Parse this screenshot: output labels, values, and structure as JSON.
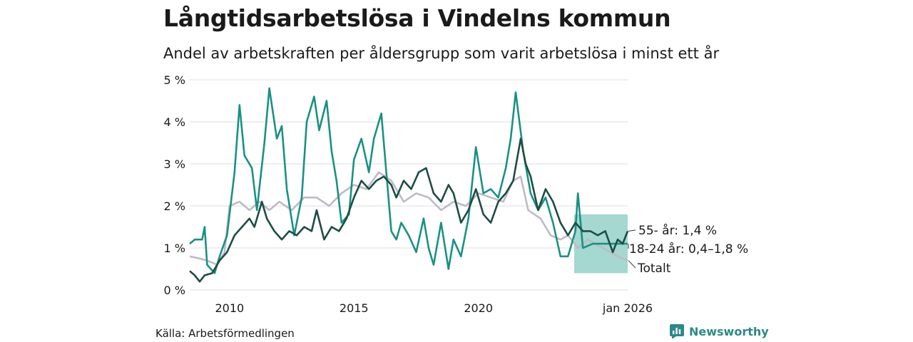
{
  "header": {
    "title": "Långtidsarbetslösa i Vindelns kommun",
    "subtitle": "Andel av arbetskraften per åldersgrupp som varit arbetslösa i minst ett år"
  },
  "footer": {
    "source": "Källa: Arbetsförmedlingen",
    "brand": "Newsworthy"
  },
  "colors": {
    "age_55_plus": "#1e4d45",
    "age_18_24": "#1a9185",
    "total": "#bfbac6",
    "band": "#9fd6cd",
    "grid": "#dddddd"
  },
  "chart_data": {
    "type": "line",
    "title": "Långtidsarbetslösa i Vindelns kommun",
    "subtitle": "Andel av arbetskraften per åldersgrupp som varit arbetslösa i minst ett år",
    "xlabel": "",
    "ylabel": "",
    "xlim": [
      2008.4,
      2026.0
    ],
    "ylim": [
      0,
      5
    ],
    "y_ticks": [
      {
        "value": 0,
        "label": "0 %"
      },
      {
        "value": 1,
        "label": "1 %"
      },
      {
        "value": 2,
        "label": "2 %"
      },
      {
        "value": 3,
        "label": "3 %"
      },
      {
        "value": 4,
        "label": "4 %"
      },
      {
        "value": 5,
        "label": "5 %"
      }
    ],
    "x_ticks": [
      {
        "value": 2010,
        "label": "2010"
      },
      {
        "value": 2015,
        "label": "2015"
      },
      {
        "value": 2020,
        "label": "2020"
      },
      {
        "value": 2026,
        "label": "jan 2026"
      }
    ],
    "grid": true,
    "series": [
      {
        "name": "Totalt",
        "key": "total",
        "points": [
          [
            2008.4,
            0.8
          ],
          [
            2008.8,
            0.75
          ],
          [
            2009.1,
            0.7
          ],
          [
            2009.5,
            0.6
          ],
          [
            2009.8,
            0.9
          ],
          [
            2010.0,
            2.0
          ],
          [
            2010.4,
            2.1
          ],
          [
            2010.8,
            1.9
          ],
          [
            2011.2,
            2.1
          ],
          [
            2011.6,
            1.9
          ],
          [
            2012.0,
            2.1
          ],
          [
            2012.5,
            1.9
          ],
          [
            2013.0,
            2.2
          ],
          [
            2013.5,
            2.2
          ],
          [
            2014.0,
            2.0
          ],
          [
            2014.5,
            2.3
          ],
          [
            2015.0,
            2.5
          ],
          [
            2015.5,
            2.4
          ],
          [
            2016.0,
            2.8
          ],
          [
            2016.5,
            2.6
          ],
          [
            2017.0,
            2.1
          ],
          [
            2017.5,
            2.3
          ],
          [
            2018.0,
            2.2
          ],
          [
            2018.5,
            1.9
          ],
          [
            2019.0,
            2.1
          ],
          [
            2019.5,
            2.0
          ],
          [
            2020.0,
            2.3
          ],
          [
            2020.5,
            2.2
          ],
          [
            2021.0,
            2.1
          ],
          [
            2021.4,
            2.6
          ],
          [
            2021.7,
            2.7
          ],
          [
            2022.0,
            1.9
          ],
          [
            2022.5,
            1.7
          ],
          [
            2022.9,
            1.3
          ],
          [
            2023.3,
            1.2
          ],
          [
            2023.6,
            1.3
          ],
          [
            2024.0,
            1.0
          ],
          [
            2024.4,
            1.2
          ],
          [
            2024.7,
            1.1
          ],
          [
            2025.0,
            1.0
          ],
          [
            2025.3,
            0.9
          ],
          [
            2025.6,
            0.8
          ],
          [
            2025.8,
            0.75
          ],
          [
            2026.0,
            0.7
          ]
        ]
      },
      {
        "name": "18-24 år",
        "key": "age_18_24",
        "points": [
          [
            2008.4,
            1.1
          ],
          [
            2008.6,
            1.2
          ],
          [
            2008.9,
            1.2
          ],
          [
            2009.0,
            1.5
          ],
          [
            2009.1,
            0.6
          ],
          [
            2009.4,
            0.4
          ],
          [
            2009.6,
            0.8
          ],
          [
            2009.9,
            1.3
          ],
          [
            2010.2,
            2.8
          ],
          [
            2010.4,
            4.4
          ],
          [
            2010.6,
            3.2
          ],
          [
            2010.9,
            2.9
          ],
          [
            2011.1,
            1.9
          ],
          [
            2011.4,
            3.5
          ],
          [
            2011.6,
            4.8
          ],
          [
            2011.9,
            3.6
          ],
          [
            2012.1,
            3.9
          ],
          [
            2012.3,
            2.4
          ],
          [
            2012.6,
            1.3
          ],
          [
            2012.9,
            2.2
          ],
          [
            2013.1,
            4.0
          ],
          [
            2013.4,
            4.6
          ],
          [
            2013.6,
            3.8
          ],
          [
            2013.9,
            4.5
          ],
          [
            2014.1,
            3.3
          ],
          [
            2014.3,
            2.6
          ],
          [
            2014.5,
            1.6
          ],
          [
            2014.8,
            1.8
          ],
          [
            2015.0,
            3.1
          ],
          [
            2015.3,
            3.6
          ],
          [
            2015.6,
            2.8
          ],
          [
            2015.8,
            3.6
          ],
          [
            2016.1,
            4.2
          ],
          [
            2016.3,
            2.8
          ],
          [
            2016.5,
            1.4
          ],
          [
            2016.7,
            1.2
          ],
          [
            2016.9,
            1.6
          ],
          [
            2017.2,
            1.3
          ],
          [
            2017.5,
            0.9
          ],
          [
            2017.8,
            1.7
          ],
          [
            2018.0,
            1.0
          ],
          [
            2018.2,
            0.6
          ],
          [
            2018.5,
            1.6
          ],
          [
            2018.8,
            0.5
          ],
          [
            2019.0,
            1.2
          ],
          [
            2019.3,
            0.8
          ],
          [
            2019.6,
            1.7
          ],
          [
            2019.9,
            3.4
          ],
          [
            2020.2,
            2.3
          ],
          [
            2020.5,
            2.4
          ],
          [
            2020.8,
            2.2
          ],
          [
            2021.1,
            2.9
          ],
          [
            2021.3,
            3.6
          ],
          [
            2021.5,
            4.7
          ],
          [
            2021.8,
            3.3
          ],
          [
            2022.1,
            2.3
          ],
          [
            2022.4,
            1.9
          ],
          [
            2022.7,
            2.2
          ],
          [
            2023.0,
            1.6
          ],
          [
            2023.3,
            0.8
          ],
          [
            2023.6,
            0.8
          ],
          [
            2023.9,
            1.4
          ],
          [
            2024.0,
            2.3
          ],
          [
            2024.2,
            1.0
          ],
          [
            2024.6,
            1.1
          ],
          [
            2025.0,
            1.1
          ],
          [
            2025.4,
            1.1
          ],
          [
            2025.7,
            1.1
          ],
          [
            2026.0,
            1.1
          ]
        ]
      },
      {
        "name": "55- år",
        "key": "age_55_plus",
        "points": [
          [
            2008.4,
            0.45
          ],
          [
            2008.6,
            0.35
          ],
          [
            2008.8,
            0.2
          ],
          [
            2009.0,
            0.35
          ],
          [
            2009.3,
            0.4
          ],
          [
            2009.6,
            0.7
          ],
          [
            2009.9,
            0.9
          ],
          [
            2010.2,
            1.3
          ],
          [
            2010.5,
            1.5
          ],
          [
            2010.8,
            1.7
          ],
          [
            2011.0,
            1.5
          ],
          [
            2011.3,
            2.1
          ],
          [
            2011.5,
            1.7
          ],
          [
            2011.8,
            1.4
          ],
          [
            2012.1,
            1.2
          ],
          [
            2012.4,
            1.4
          ],
          [
            2012.7,
            1.3
          ],
          [
            2013.0,
            1.5
          ],
          [
            2013.3,
            1.4
          ],
          [
            2013.5,
            1.9
          ],
          [
            2013.8,
            1.2
          ],
          [
            2014.1,
            1.5
          ],
          [
            2014.4,
            1.4
          ],
          [
            2014.7,
            1.7
          ],
          [
            2015.0,
            2.2
          ],
          [
            2015.3,
            2.6
          ],
          [
            2015.6,
            2.4
          ],
          [
            2015.9,
            2.6
          ],
          [
            2016.2,
            2.7
          ],
          [
            2016.5,
            2.5
          ],
          [
            2016.7,
            2.2
          ],
          [
            2017.0,
            2.6
          ],
          [
            2017.3,
            2.4
          ],
          [
            2017.6,
            2.8
          ],
          [
            2017.9,
            2.9
          ],
          [
            2018.2,
            2.3
          ],
          [
            2018.5,
            2.1
          ],
          [
            2018.8,
            2.5
          ],
          [
            2019.0,
            2.3
          ],
          [
            2019.3,
            1.6
          ],
          [
            2019.6,
            1.9
          ],
          [
            2019.9,
            2.4
          ],
          [
            2020.2,
            1.8
          ],
          [
            2020.5,
            1.6
          ],
          [
            2020.8,
            2.1
          ],
          [
            2021.1,
            2.3
          ],
          [
            2021.4,
            2.6
          ],
          [
            2021.7,
            3.6
          ],
          [
            2021.9,
            3.0
          ],
          [
            2022.1,
            2.7
          ],
          [
            2022.4,
            1.9
          ],
          [
            2022.7,
            2.4
          ],
          [
            2023.0,
            2.1
          ],
          [
            2023.3,
            1.6
          ],
          [
            2023.6,
            1.3
          ],
          [
            2023.9,
            1.6
          ],
          [
            2024.2,
            1.4
          ],
          [
            2024.5,
            1.4
          ],
          [
            2024.8,
            1.3
          ],
          [
            2025.1,
            1.4
          ],
          [
            2025.4,
            0.9
          ],
          [
            2025.6,
            1.2
          ],
          [
            2025.8,
            1.1
          ],
          [
            2026.0,
            1.4
          ]
        ]
      }
    ],
    "band": {
      "name": "18-24 år intervall",
      "key": "band",
      "x_start": 2023.85,
      "x_end": 2026.0,
      "lower": 0.4,
      "upper": 1.8
    },
    "annotations": [
      {
        "key": "age_55_plus",
        "text": "55- år: 1,4 %",
        "value": 1.4
      },
      {
        "key": "age_18_24",
        "text": "18-24 år: 0,4–1,8 %",
        "value": 1.1
      },
      {
        "key": "total",
        "text": "Totalt",
        "value": 0.7
      }
    ]
  }
}
